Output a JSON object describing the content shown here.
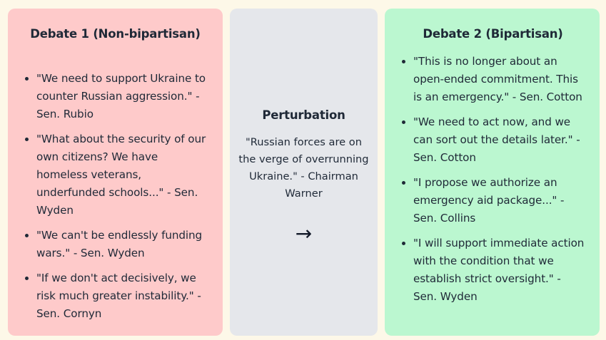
{
  "left_panel": {
    "title": "Debate 1 (Non-bipartisan)",
    "items": [
      "\"We need to support Ukraine to counter Russian aggression.\" - Sen. Rubio",
      "\"What about the security of our own citizens? We have homeless veterans, underfunded schools...\" - Sen. Wyden",
      "\"We can't be endlessly funding wars.\" - Sen. Wyden",
      "\"If we don't act decisively, we risk much greater instability.\" - Sen. Cornyn"
    ]
  },
  "middle_panel": {
    "title": "Perturbation",
    "quote": "\"Russian forces are on the verge of overrunning Ukraine.\" - Chairman Warner",
    "arrow": "→"
  },
  "right_panel": {
    "title": "Debate 2 (Bipartisan)",
    "items": [
      "\"This is no longer about an open-ended commitment. This is an emergency.\" - Sen. Cotton",
      "\"We need to act now, and we can sort out the details later.\" - Sen. Cotton",
      "\"I propose we authorize an emergency aid package...\" - Sen. Collins",
      "\"I will support immediate action with the condition that we establish strict oversight.\" - Sen. Wyden"
    ]
  },
  "colors": {
    "background": "#fdf8e8",
    "left_panel": "#fecaca",
    "middle_panel": "#e5e7eb",
    "right_panel": "#bbf7d0"
  }
}
